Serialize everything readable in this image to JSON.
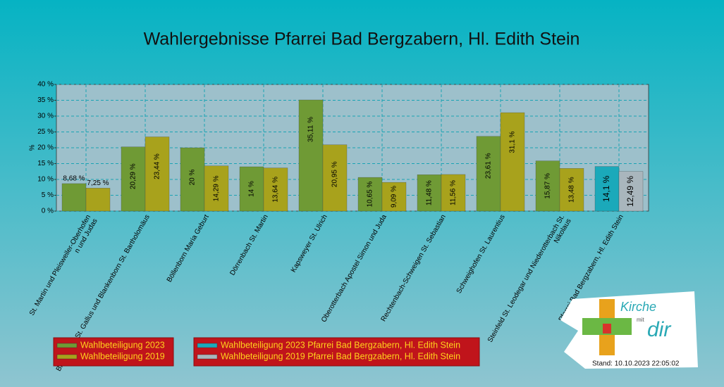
{
  "chart_data": {
    "type": "bar",
    "title": "Wahlergebnisse Pfarrei Bad Bergzabern, Hl. Edith Stein",
    "ylabel": "%",
    "categories": [
      "St. Martin und Pleisweiler-Oberhofen\nn und Judas",
      "Birkenhördt St. Gallus und Blankenborn St. Bartholomäus",
      "Böllenborn Maria Geburt",
      "Dörrenbach St. Martin",
      "Kapsweyer St. Ulrich",
      "Oberotterbach Apostel Simon und Juda",
      "Rechtenbach-Schweigen St. Sebastian",
      "Schweighofen St. Laurentius",
      "Steinfeld St. Leodegar und Niederotterbach St.\nNikolaus",
      "Pfarrei Bad Bergzabern, Hl. Edith Stein"
    ],
    "series": [
      {
        "name": "Wahlbeteiligung 2023",
        "color": "#6f9a35",
        "values": [
          8.68,
          20.29,
          20,
          14,
          35.11,
          10.65,
          11.48,
          23.61,
          15.87,
          null
        ],
        "value_labels": [
          "8,68 %",
          "20,29 %",
          "20 %",
          "14 %",
          "35,11 %",
          "10,65 %",
          "11,48 %",
          "23,61 %",
          "15,87 %",
          null
        ]
      },
      {
        "name": "Wahlbeteiligung 2019",
        "color": "#a8a21c",
        "values": [
          7.25,
          23.44,
          14.29,
          13.64,
          20.95,
          9.09,
          11.56,
          31.1,
          13.48,
          null
        ],
        "value_labels": [
          "7,25 %",
          "23,44 %",
          "14,29 %",
          "13,64 %",
          "20,95 %",
          "9,09 %",
          "11,56 %",
          "31,1 %",
          "13,48 %",
          null
        ]
      },
      {
        "name": "Wahlbeteiligung 2023 Pfarrei Bad Bergzabern, Hl. Edith Stein",
        "color": "#1ba9ba",
        "values": [
          null,
          null,
          null,
          null,
          null,
          null,
          null,
          null,
          null,
          14.1
        ],
        "value_labels": [
          null,
          null,
          null,
          null,
          null,
          null,
          null,
          null,
          null,
          "14,1 %"
        ]
      },
      {
        "name": "Wahlbeteiligung 2019 Pfarrei Bad Bergzabern, Hl. Edith Stein",
        "color": "#a9b6bd",
        "values": [
          null,
          null,
          null,
          null,
          null,
          null,
          null,
          null,
          null,
          12.49
        ],
        "value_labels": [
          null,
          null,
          null,
          null,
          null,
          null,
          null,
          null,
          null,
          "12,49 %"
        ]
      }
    ],
    "ylim": [
      0,
      40
    ],
    "yticks": [
      {
        "value": 0,
        "label": "0 %"
      },
      {
        "value": 5,
        "label": "5 %"
      },
      {
        "value": 10,
        "label": "10 %"
      },
      {
        "value": 15,
        "label": "15 %"
      },
      {
        "value": 20,
        "label": "20 %"
      },
      {
        "value": 25,
        "label": "25 %"
      },
      {
        "value": 30,
        "label": "30 %"
      },
      {
        "value": 35,
        "label": "35 %"
      },
      {
        "value": 40,
        "label": "40 %"
      }
    ],
    "grid": true,
    "stand": "Stand: 10.10.2023 22:05:02",
    "logo": {
      "word1": "Kirche",
      "word2": "mit",
      "word3": "dir"
    }
  }
}
